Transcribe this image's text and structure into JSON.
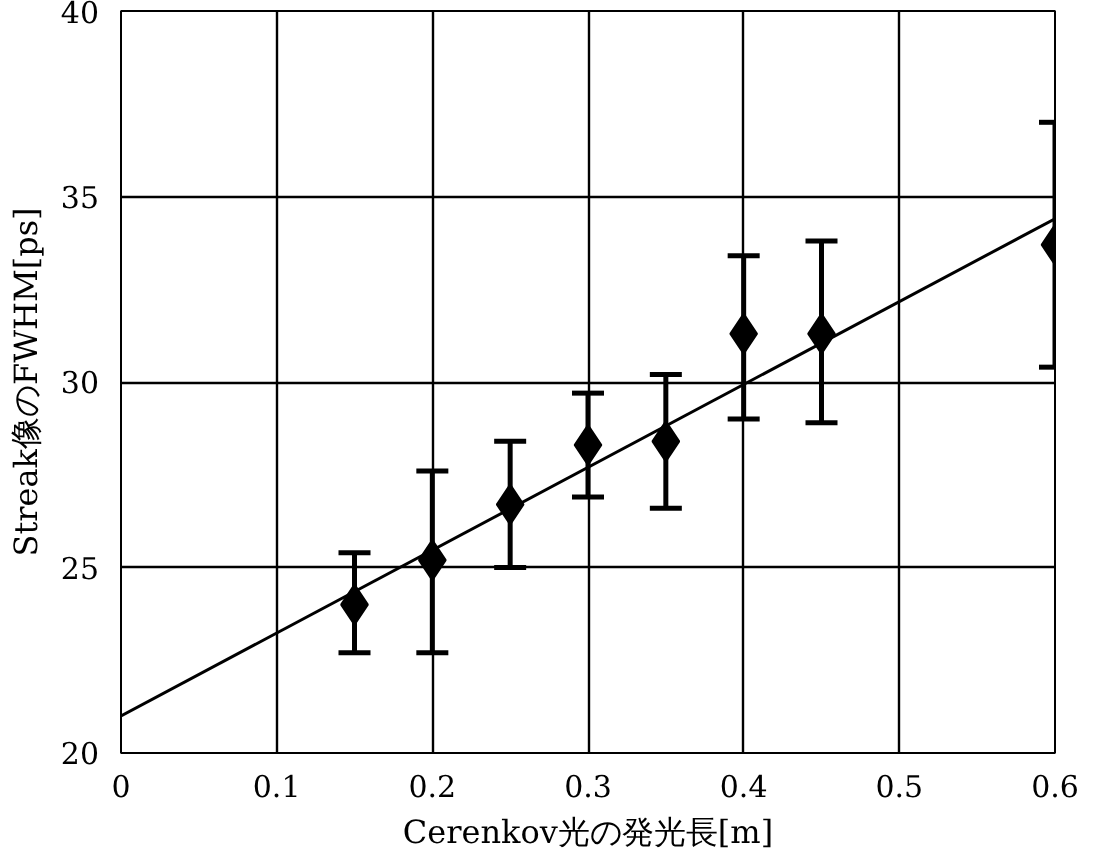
{
  "chart_data": {
    "type": "scatter",
    "xlabel": "Cerenkov光の発光長[m]",
    "ylabel": "Streak像のFWHM[ps]",
    "xlim": [
      0,
      0.6
    ],
    "xticks": [
      {
        "value": 0,
        "label": "0"
      },
      {
        "value": 0.1,
        "label": "0.1"
      },
      {
        "value": 0.2,
        "label": "0.2"
      },
      {
        "value": 0.3,
        "label": "0.3"
      },
      {
        "value": 0.4,
        "label": "0.4"
      },
      {
        "value": 0.5,
        "label": "0.5"
      },
      {
        "value": 0.6,
        "label": "0.6"
      }
    ],
    "ylim": [
      20,
      40
    ],
    "yticks": [
      20,
      25,
      30,
      35,
      40
    ],
    "grid": true,
    "marker": "diamond",
    "series": [
      {
        "color": "#000000",
        "x": [
          0.15,
          0.2,
          0.25,
          0.3,
          0.35,
          0.4,
          0.45,
          0.6
        ],
        "values": [
          24.0,
          25.2,
          26.7,
          28.3,
          28.4,
          31.3,
          31.3,
          33.7
        ],
        "errors": [
          [
            22.7,
            25.4
          ],
          [
            22.7,
            27.6
          ],
          [
            25.0,
            28.4
          ],
          [
            26.9,
            29.7
          ],
          [
            26.6,
            30.2
          ],
          [
            29.0,
            33.4
          ],
          [
            28.9,
            33.8
          ],
          [
            30.4,
            37.0
          ]
        ]
      },
      {
        "type": "line",
        "marker": "none",
        "color": "#000000",
        "x": [
          0,
          0.6
        ],
        "values": [
          21.0,
          34.4
        ]
      }
    ]
  }
}
